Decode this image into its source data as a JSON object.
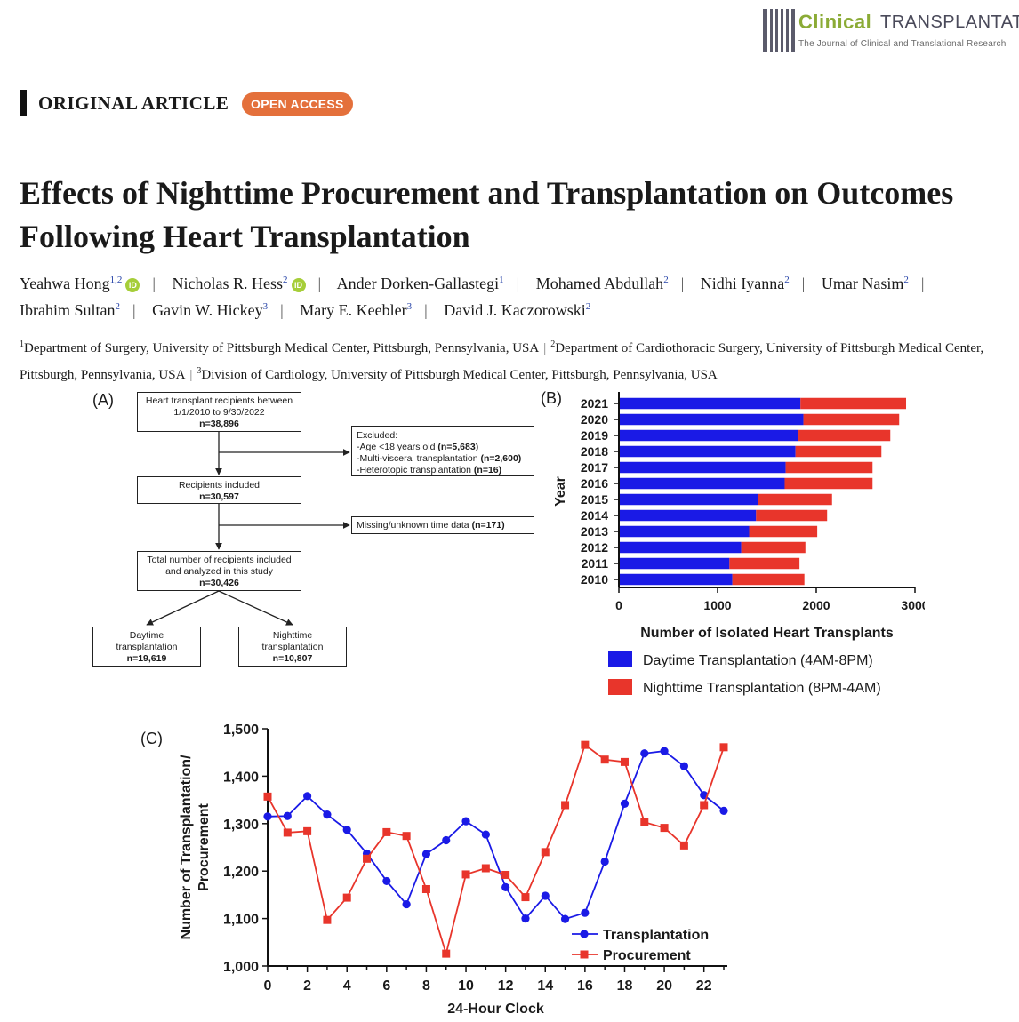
{
  "journal": {
    "name_part1": "Clinical",
    "name_part2": "TRANSPLANTATION",
    "subtitle": "The Journal of Clinical and Translational Research"
  },
  "article_type": "ORIGINAL ARTICLE",
  "badge": "OPEN ACCESS",
  "title": "Effects of Nighttime Procurement and Transplantation on Outcomes Following Heart Transplantation",
  "authors": [
    {
      "name": "Yeahwa Hong",
      "sup": "1,2",
      "orcid": true
    },
    {
      "name": "Nicholas R. Hess",
      "sup": "2",
      "orcid": true
    },
    {
      "name": "Ander Dorken-Gallastegi",
      "sup": "1",
      "orcid": false
    },
    {
      "name": "Mohamed Abdullah",
      "sup": "2",
      "orcid": false
    },
    {
      "name": "Nidhi Iyanna",
      "sup": "2",
      "orcid": false
    },
    {
      "name": "Umar Nasim",
      "sup": "2",
      "orcid": false
    },
    {
      "name": "Ibrahim Sultan",
      "sup": "2",
      "orcid": false
    },
    {
      "name": "Gavin W. Hickey",
      "sup": "3",
      "orcid": false
    },
    {
      "name": "Mary E. Keebler",
      "sup": "3",
      "orcid": false
    },
    {
      "name": "David J. Kaczorowski",
      "sup": "2",
      "orcid": false
    }
  ],
  "orcid_label": "iD",
  "affiliations": [
    {
      "sup": "1",
      "text": "Department of Surgery, University of Pittsburgh Medical Center, Pittsburgh, Pennsylvania, USA"
    },
    {
      "sup": "2",
      "text": "Department of Cardiothoracic Surgery, University of Pittsburgh Medical Center, Pittsburgh, Pennsylvania, USA"
    },
    {
      "sup": "3",
      "text": "Division of Cardiology, University of Pittsburgh Medical Center, Pittsburgh, Pennsylvania, USA"
    }
  ],
  "flowchart": {
    "label": "(A)",
    "box1": {
      "lines": [
        "Heart transplant recipients between",
        "1/1/2010 to 9/30/2022"
      ],
      "count": "n=38,896"
    },
    "excluded": {
      "heading": "Excluded:",
      "items": [
        {
          "text": "-Age <18 years old ",
          "count": "(n=5,683)"
        },
        {
          "text": "-Multi-visceral transplantation ",
          "count": "(n=2,600)"
        },
        {
          "text": "-Heterotopic transplantation ",
          "count": "(n=16)"
        }
      ]
    },
    "box2": {
      "lines": [
        "Recipients included"
      ],
      "count": "n=30,597"
    },
    "missing": {
      "text": "Missing/unknown time data ",
      "count": "(n=171)"
    },
    "box3": {
      "lines": [
        "Total number of recipients included",
        "and analyzed in this study"
      ],
      "count": "n=30,426"
    },
    "day": {
      "lines": [
        "Daytime",
        "transplantation"
      ],
      "count": "n=19,619"
    },
    "night": {
      "lines": [
        "Nighttime",
        "transplantation"
      ],
      "count": "n=10,807"
    }
  },
  "chart_data": [
    {
      "panel_label": "(B)",
      "type": "bar",
      "orientation": "horizontal",
      "stacked": true,
      "categories": [
        "2021",
        "2020",
        "2019",
        "2018",
        "2017",
        "2016",
        "2015",
        "2014",
        "2013",
        "2012",
        "2011",
        "2010"
      ],
      "series": [
        {
          "name": "Daytime Transplantation (4AM-8PM)",
          "color": "#1a1ae6",
          "values": [
            1840,
            1870,
            1820,
            1790,
            1690,
            1680,
            1410,
            1390,
            1320,
            1240,
            1120,
            1150
          ]
        },
        {
          "name": "Nighttime Transplantation (8PM-4AM)",
          "color": "#e8352b",
          "values": [
            1070,
            970,
            930,
            870,
            880,
            890,
            750,
            720,
            690,
            650,
            710,
            730
          ]
        }
      ],
      "xlabel": "Number of Isolated Heart Transplants",
      "ylabel": "Year",
      "xlim": [
        0,
        3000
      ],
      "xticks": [
        "0",
        "1000",
        "2000",
        "3000"
      ],
      "grid": false,
      "legend": "bottom"
    },
    {
      "panel_label": "(C)",
      "type": "line",
      "x": [
        0,
        1,
        2,
        3,
        4,
        5,
        6,
        7,
        8,
        9,
        10,
        11,
        12,
        13,
        14,
        15,
        16,
        17,
        18,
        19,
        20,
        21,
        22,
        23
      ],
      "series": [
        {
          "name": "Transplantation",
          "color": "#1a1ae6",
          "marker": "circle",
          "values": [
            1315,
            1316,
            1358,
            1319,
            1287,
            1237,
            1179,
            1130,
            1236,
            1265,
            1305,
            1277,
            1166,
            1100,
            1148,
            1099,
            1112,
            1220,
            1342,
            1448,
            1453,
            1421,
            1360,
            1327
          ]
        },
        {
          "name": "Procurement",
          "color": "#e8352b",
          "marker": "square",
          "values": [
            1357,
            1281,
            1284,
            1097,
            1144,
            1226,
            1282,
            1274,
            1162,
            1026,
            1193,
            1206,
            1192,
            1145,
            1240,
            1339,
            1466,
            1435,
            1430,
            1303,
            1291,
            1254,
            1339,
            1461
          ]
        }
      ],
      "xlabel": "24-Hour Clock",
      "ylabel": "Number of Transplantation/ Procurement",
      "ylabel_lines": [
        "Number of Transplantation/",
        "Procurement"
      ],
      "xlim": [
        0,
        23
      ],
      "ylim": [
        1000,
        1500
      ],
      "xticks": [
        "0",
        "2",
        "4",
        "6",
        "8",
        "10",
        "12",
        "14",
        "16",
        "18",
        "20",
        "22"
      ],
      "yticks": [
        "1,000",
        "1,100",
        "1,200",
        "1,300",
        "1,400",
        "1,500"
      ],
      "grid": false,
      "legend": "bottom-right"
    }
  ]
}
